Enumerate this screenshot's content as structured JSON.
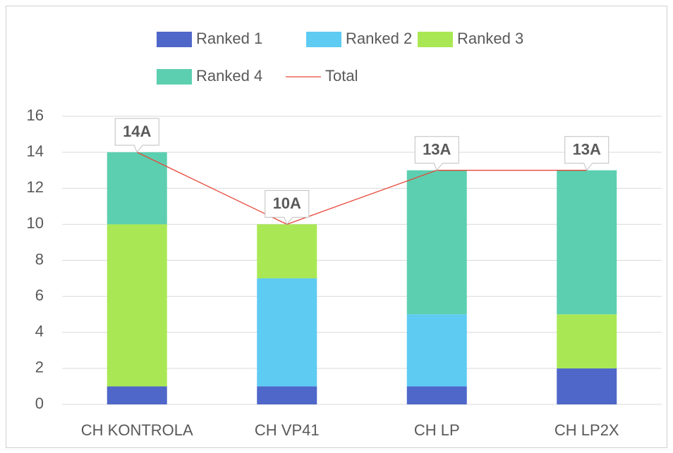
{
  "chart_data": {
    "type": "bar",
    "stacked": true,
    "categories": [
      "CH KONTROLA",
      "CH VP41",
      "CH LP",
      "CH LP2X"
    ],
    "series": [
      {
        "name": "Ranked 1",
        "color": "#4f67c9",
        "values": [
          1,
          1,
          1,
          2
        ]
      },
      {
        "name": "Ranked 2",
        "color": "#5ecbf2",
        "values": [
          0,
          6,
          4,
          0
        ]
      },
      {
        "name": "Ranked 3",
        "color": "#a9e854",
        "values": [
          9,
          3,
          0,
          3
        ]
      },
      {
        "name": "Ranked 4",
        "color": "#5ccfb0",
        "values": [
          4,
          0,
          8,
          8
        ]
      },
      {
        "name": "Total",
        "type": "line",
        "color": "#e8483a",
        "values": [
          14,
          10,
          13,
          13
        ],
        "value_labels": [
          "14A",
          "10A",
          "13A",
          "13A"
        ]
      }
    ],
    "ylim": [
      0,
      16
    ],
    "yticks": [
      0,
      2,
      4,
      6,
      8,
      10,
      12,
      14,
      16
    ],
    "grid": true,
    "legend": "top"
  }
}
